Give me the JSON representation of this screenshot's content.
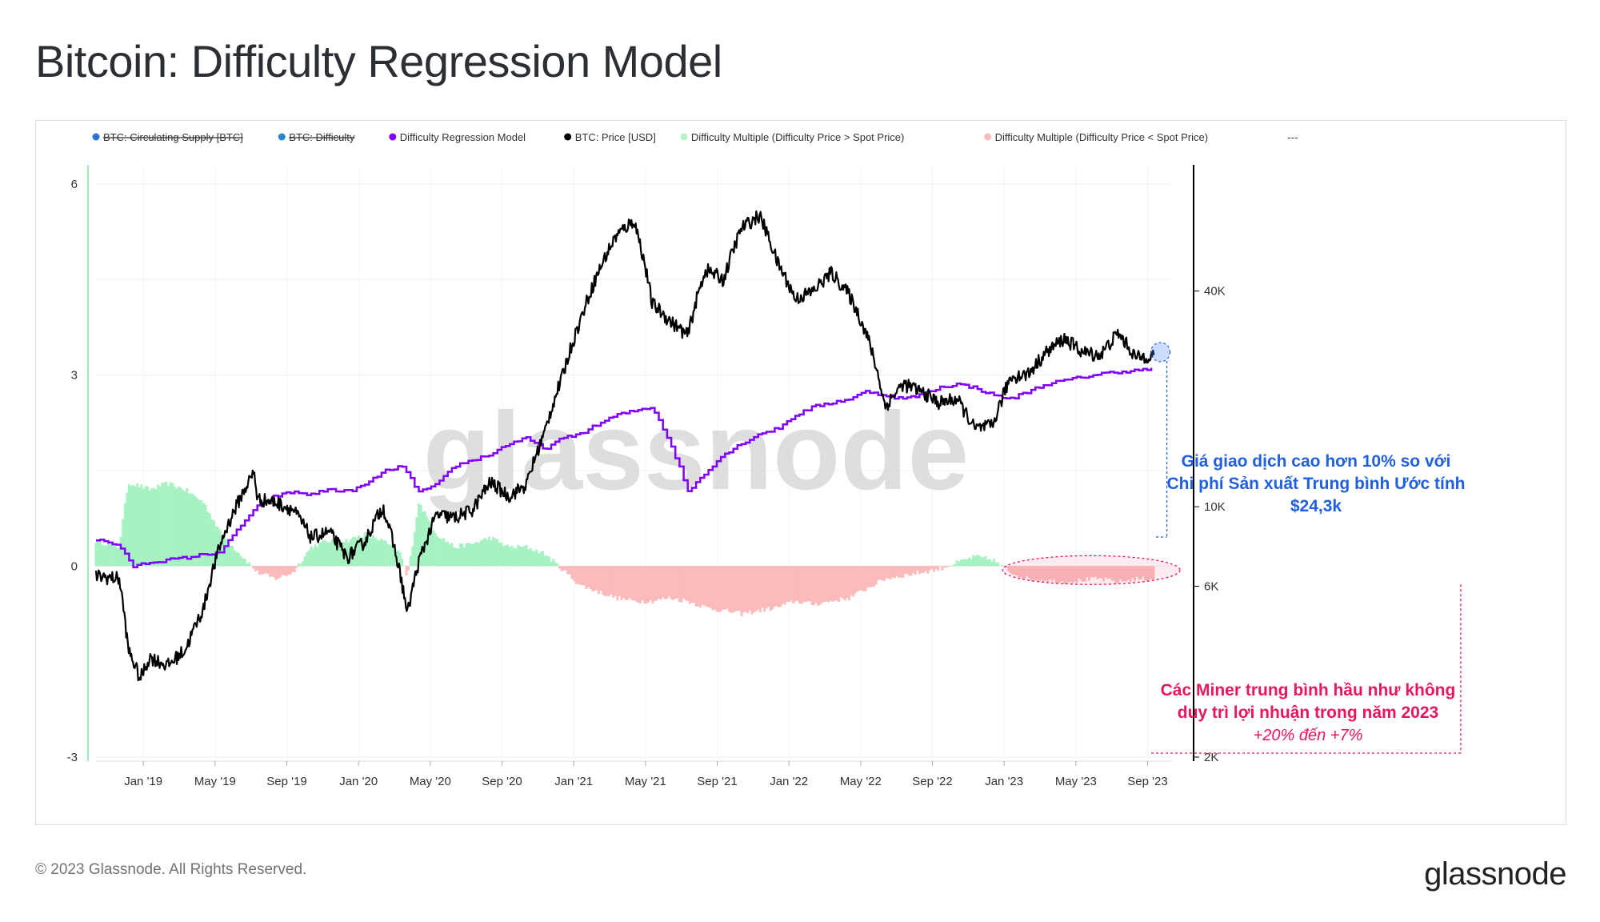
{
  "title": "Bitcoin: Difficulty Regression Model",
  "footer": {
    "copyright": "© 2023 Glassnode. All Rights Reserved.",
    "logo_text": "glassnode"
  },
  "watermark": "glassnode",
  "colors": {
    "model": "#8000ff",
    "price": "#000000",
    "multiple_positive": "#9af0b8",
    "multiple_negative": "#f9b0b0",
    "annotation_blue": "#1f5fe0",
    "annotation_pink": "#e8155f"
  },
  "chart_data": {
    "type": "line",
    "legend": [
      {
        "label": "BTC: Circulating Supply [BTC]",
        "color": "#2f6fd6",
        "disabled": true
      },
      {
        "label": "BTC: Difficulty",
        "color": "#2a85c9",
        "disabled": true
      },
      {
        "label": "Difficulty Regression Model",
        "color": "#8000ff",
        "disabled": false
      },
      {
        "label": "BTC: Price [USD]",
        "color": "#000000",
        "disabled": false
      },
      {
        "label": "Difficulty Multiple (Difficulty Price > Spot Price)",
        "color": "#b7f2c9",
        "disabled": false
      },
      {
        "label": "Difficulty Multiple (Difficulty Price < Spot Price)",
        "color": "#f8bcbc",
        "disabled": false
      },
      {
        "label": "---",
        "color": "",
        "disabled": false
      }
    ],
    "x_ticks": [
      "Jan '19",
      "May '19",
      "Sep '19",
      "Jan '20",
      "May '20",
      "Sep '20",
      "Jan '21",
      "May '21",
      "Sep '21",
      "Jan '22",
      "May '22",
      "Sep '22",
      "Jan '23",
      "May '23",
      "Sep '23"
    ],
    "x_range": [
      "2018-10",
      "2023-10"
    ],
    "left_axis": {
      "ticks": [
        "6",
        "3",
        "0",
        "-3"
      ],
      "range": [
        -3,
        6.3
      ]
    },
    "right_axis": {
      "scale": "log",
      "ticks": [
        "40K",
        "10K",
        "6K",
        "2K"
      ],
      "range": [
        2000,
        90000
      ]
    },
    "series": [
      {
        "name": "BTC: Price [USD]",
        "axis": "right",
        "points": [
          [
            "2018-10",
            6400
          ],
          [
            "2018-11-10",
            6300
          ],
          [
            "2018-11-25",
            4000
          ],
          [
            "2018-12-15",
            3300
          ],
          [
            "2019-01",
            3800
          ],
          [
            "2019-02",
            3600
          ],
          [
            "2019-03",
            4000
          ],
          [
            "2019-04",
            5200
          ],
          [
            "2019-05",
            8000
          ],
          [
            "2019-06-26",
            12500
          ],
          [
            "2019-07",
            10500
          ],
          [
            "2019-08",
            10300
          ],
          [
            "2019-09",
            9800
          ],
          [
            "2019-10",
            8200
          ],
          [
            "2019-11",
            8500
          ],
          [
            "2019-12",
            7200
          ],
          [
            "2020-01",
            8000
          ],
          [
            "2020-02",
            10000
          ],
          [
            "2020-03-12",
            5000
          ],
          [
            "2020-04",
            7000
          ],
          [
            "2020-05",
            9500
          ],
          [
            "2020-06",
            9300
          ],
          [
            "2020-07",
            9800
          ],
          [
            "2020-08",
            11700
          ],
          [
            "2020-09",
            10700
          ],
          [
            "2020-10",
            11500
          ],
          [
            "2020-11",
            16000
          ],
          [
            "2020-12",
            23000
          ],
          [
            "2021-01",
            33000
          ],
          [
            "2021-02",
            45000
          ],
          [
            "2021-03",
            57000
          ],
          [
            "2021-04",
            63000
          ],
          [
            "2021-05",
            37000
          ],
          [
            "2021-06",
            33000
          ],
          [
            "2021-07",
            30000
          ],
          [
            "2021-08",
            46000
          ],
          [
            "2021-09",
            43000
          ],
          [
            "2021-10",
            60000
          ],
          [
            "2021-11",
            65000
          ],
          [
            "2021-12",
            48000
          ],
          [
            "2022-01",
            38000
          ],
          [
            "2022-02",
            40000
          ],
          [
            "2022-03",
            45000
          ],
          [
            "2022-04",
            39000
          ],
          [
            "2022-05",
            30000
          ],
          [
            "2022-06",
            19000
          ],
          [
            "2022-07",
            22000
          ],
          [
            "2022-08",
            21000
          ],
          [
            "2022-09",
            19500
          ],
          [
            "2022-10",
            20000
          ],
          [
            "2022-11",
            16500
          ],
          [
            "2022-12",
            16800
          ],
          [
            "2023-01",
            23000
          ],
          [
            "2023-02",
            23500
          ],
          [
            "2023-03",
            27000
          ],
          [
            "2023-04",
            29500
          ],
          [
            "2023-05",
            27000
          ],
          [
            "2023-06",
            26500
          ],
          [
            "2023-07",
            30500
          ],
          [
            "2023-08",
            26000
          ],
          [
            "2023-09",
            26600
          ]
        ]
      },
      {
        "name": "Difficulty Regression Model",
        "axis": "right",
        "points": [
          [
            "2018-10",
            8100
          ],
          [
            "2018-11-10",
            7800
          ],
          [
            "2018-12",
            6800
          ],
          [
            "2019-01",
            7000
          ],
          [
            "2019-03",
            7200
          ],
          [
            "2019-05",
            7500
          ],
          [
            "2019-06",
            8800
          ],
          [
            "2019-07",
            10000
          ],
          [
            "2019-08",
            10700
          ],
          [
            "2019-09",
            11000
          ],
          [
            "2019-10",
            10800
          ],
          [
            "2019-11",
            11200
          ],
          [
            "2019-12",
            11000
          ],
          [
            "2020-01",
            11500
          ],
          [
            "2020-02",
            12500
          ],
          [
            "2020-03",
            13000
          ],
          [
            "2020-04",
            11000
          ],
          [
            "2020-05",
            11500
          ],
          [
            "2020-06",
            13000
          ],
          [
            "2020-07",
            13500
          ],
          [
            "2020-08",
            14000
          ],
          [
            "2020-09",
            15000
          ],
          [
            "2020-10",
            15500
          ],
          [
            "2020-11",
            14500
          ],
          [
            "2020-12",
            15500
          ],
          [
            "2021-01",
            16000
          ],
          [
            "2021-02",
            17000
          ],
          [
            "2021-03",
            18000
          ],
          [
            "2021-04",
            18500
          ],
          [
            "2021-05",
            19000
          ],
          [
            "2021-06",
            15000
          ],
          [
            "2021-07",
            11000
          ],
          [
            "2021-08",
            12500
          ],
          [
            "2021-09",
            14000
          ],
          [
            "2021-10",
            15000
          ],
          [
            "2021-11",
            16000
          ],
          [
            "2021-12",
            16500
          ],
          [
            "2022-01",
            18000
          ],
          [
            "2022-02",
            19000
          ],
          [
            "2022-03",
            19500
          ],
          [
            "2022-04",
            20000
          ],
          [
            "2022-05",
            21000
          ],
          [
            "2022-06",
            20500
          ],
          [
            "2022-07",
            20000
          ],
          [
            "2022-08",
            20500
          ],
          [
            "2022-09",
            21500
          ],
          [
            "2022-10",
            22000
          ],
          [
            "2022-11",
            21500
          ],
          [
            "2022-12",
            20500
          ],
          [
            "2023-01",
            20000
          ],
          [
            "2023-02",
            21000
          ],
          [
            "2023-03",
            22000
          ],
          [
            "2023-04",
            22500
          ],
          [
            "2023-05",
            23000
          ],
          [
            "2023-06",
            23500
          ],
          [
            "2023-07",
            23800
          ],
          [
            "2023-08",
            24000
          ],
          [
            "2023-09",
            24300
          ]
        ]
      },
      {
        "name": "Difficulty Multiple",
        "axis": "left",
        "type": "bar",
        "points": [
          [
            "2018-10",
            0.4
          ],
          [
            "2018-11-10",
            0.3
          ],
          [
            "2018-11-25",
            1.3
          ],
          [
            "2018-12",
            1.3
          ],
          [
            "2019-01",
            1.2
          ],
          [
            "2019-02",
            1.3
          ],
          [
            "2019-03",
            1.2
          ],
          [
            "2019-04",
            1.0
          ],
          [
            "2019-05",
            0.5
          ],
          [
            "2019-06",
            0.2
          ],
          [
            "2019-07",
            -0.1
          ],
          [
            "2019-08",
            -0.2
          ],
          [
            "2019-09",
            -0.1
          ],
          [
            "2019-10",
            0.3
          ],
          [
            "2019-11",
            0.4
          ],
          [
            "2019-12",
            0.4
          ],
          [
            "2020-01",
            0.5
          ],
          [
            "2020-02",
            0.4
          ],
          [
            "2020-03",
            0.2
          ],
          [
            "2020-03-12",
            -0.2
          ],
          [
            "2020-04",
            1.0
          ],
          [
            "2020-05",
            0.5
          ],
          [
            "2020-06",
            0.3
          ],
          [
            "2020-07",
            0.35
          ],
          [
            "2020-08",
            0.45
          ],
          [
            "2020-09",
            0.3
          ],
          [
            "2020-10",
            0.3
          ],
          [
            "2020-11",
            0.2
          ],
          [
            "2020-12",
            -0.05
          ],
          [
            "2021-01",
            -0.3
          ],
          [
            "2021-02",
            -0.4
          ],
          [
            "2021-03",
            -0.5
          ],
          [
            "2021-04",
            -0.55
          ],
          [
            "2021-05",
            -0.55
          ],
          [
            "2021-06",
            -0.5
          ],
          [
            "2021-07",
            -0.55
          ],
          [
            "2021-08",
            -0.65
          ],
          [
            "2021-09",
            -0.7
          ],
          [
            "2021-10",
            -0.75
          ],
          [
            "2021-11",
            -0.7
          ],
          [
            "2021-12",
            -0.65
          ],
          [
            "2022-01",
            -0.55
          ],
          [
            "2022-02",
            -0.6
          ],
          [
            "2022-03",
            -0.55
          ],
          [
            "2022-04",
            -0.5
          ],
          [
            "2022-05",
            -0.35
          ],
          [
            "2022-06",
            -0.2
          ],
          [
            "2022-07",
            -0.15
          ],
          [
            "2022-08",
            -0.1
          ],
          [
            "2022-09",
            -0.05
          ],
          [
            "2022-10",
            0.05
          ],
          [
            "2022-11",
            0.15
          ],
          [
            "2022-12",
            0.1
          ],
          [
            "2023-01",
            -0.1
          ],
          [
            "2023-02",
            -0.2
          ],
          [
            "2023-03",
            -0.22
          ],
          [
            "2023-04",
            -0.25
          ],
          [
            "2023-05",
            -0.22
          ],
          [
            "2023-06",
            -0.2
          ],
          [
            "2023-07",
            -0.25
          ],
          [
            "2023-08",
            -0.2
          ],
          [
            "2023-09",
            -0.2
          ]
        ]
      }
    ],
    "annotations": [
      {
        "lines": [
          "Giá giao dịch cao hơn 10% so với",
          "Chi phí Sản xuất Trung bình Ước tính",
          "$24,3k"
        ],
        "color": "#1f5fe0"
      },
      {
        "lines": [
          "Các Miner trung bình hầu như không",
          "duy trì lợi nhuận trong năm 2023"
        ],
        "subline": "+20% đến +7%",
        "color": "#e8155f"
      }
    ]
  }
}
